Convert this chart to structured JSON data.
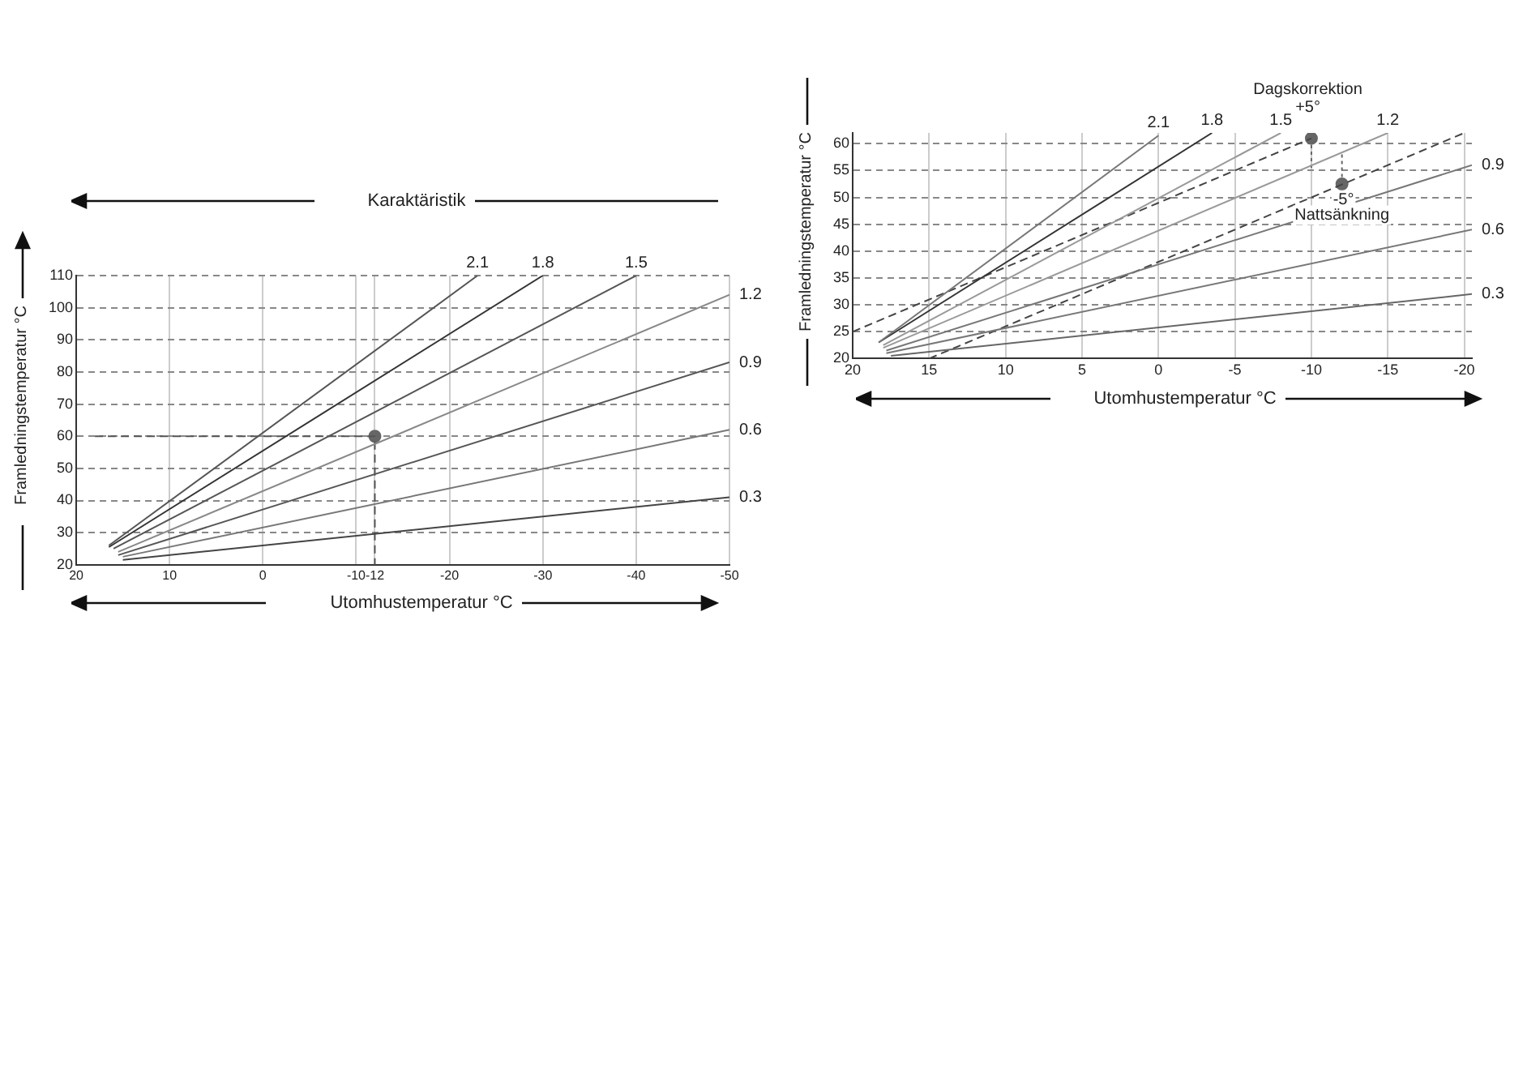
{
  "chart_data": [
    {
      "type": "line",
      "xlabel": "Utomhustemperatur °C",
      "ylabel": "Framledningstemperatur °C",
      "annotations": [
        "Karaktäristik"
      ],
      "xlim": [
        20,
        -50
      ],
      "xticks": [
        20,
        10,
        0,
        -10,
        -12,
        -20,
        -30,
        -40,
        -50
      ],
      "ylim": [
        20,
        110
      ],
      "yticks": [
        20,
        30,
        40,
        50,
        60,
        70,
        80,
        90,
        100,
        110
      ],
      "grid": true,
      "legend": false,
      "marker": "none",
      "series": [
        {
          "name": "2.1",
          "color": "#555555",
          "x": [
            16.5,
            -23
          ],
          "values": [
            26,
            110
          ]
        },
        {
          "name": "1.8",
          "color": "#333333",
          "x": [
            16.5,
            -30
          ],
          "values": [
            25.5,
            110
          ]
        },
        {
          "name": "1.5",
          "color": "#555555",
          "x": [
            16,
            -40
          ],
          "values": [
            25,
            110
          ]
        },
        {
          "name": "1.2",
          "color": "#888888",
          "x": [
            15.5,
            -50
          ],
          "values": [
            24,
            104
          ]
        },
        {
          "name": "0.9",
          "color": "#555555",
          "x": [
            15.5,
            -50
          ],
          "values": [
            23,
            83
          ]
        },
        {
          "name": "0.6",
          "color": "#777777",
          "x": [
            15,
            -50
          ],
          "values": [
            22.5,
            62
          ]
        },
        {
          "name": "0.3",
          "color": "#444444",
          "x": [
            15,
            -50
          ],
          "values": [
            21.5,
            41
          ]
        },
        {
          "color": "#555555",
          "line_style": "dashed",
          "x": [
            18,
            -12,
            -12
          ],
          "values": [
            60,
            60,
            20
          ]
        },
        {
          "type": "scatter",
          "marker": "circle",
          "color": "#666666",
          "x": [
            -12
          ],
          "values": [
            60
          ]
        }
      ]
    },
    {
      "type": "line",
      "xlabel": "Utomhustemperatur °C",
      "ylabel": "Framledningstemperatur °C",
      "annotations": [
        "Dagskorrektion",
        "+5°",
        {
          "text": "-5°",
          "x": -12.1,
          "y": 49.5
        },
        {
          "text": "Nattsänkning",
          "x": -12,
          "y": 46.7
        }
      ],
      "xlim": [
        20,
        -20.5
      ],
      "xticks": [
        20,
        15,
        10,
        5,
        0,
        -5,
        -10,
        -15,
        -20
      ],
      "ylim": [
        20,
        62
      ],
      "yticks": [
        20,
        25,
        30,
        35,
        40,
        45,
        50,
        55,
        60
      ],
      "grid": true,
      "legend": false,
      "marker": "none",
      "series": [
        {
          "name": "2.1",
          "color": "#777777",
          "x": [
            18.3,
            0
          ],
          "values": [
            23,
            61.5
          ]
        },
        {
          "name": "1.8",
          "color": "#333333",
          "x": [
            18.3,
            -3.5
          ],
          "values": [
            23,
            62
          ]
        },
        {
          "name": "1.5",
          "color": "#999999",
          "x": [
            18,
            -8
          ],
          "values": [
            22.5,
            62
          ]
        },
        {
          "name": "1.2",
          "color": "#999999",
          "x": [
            18,
            -15
          ],
          "values": [
            22,
            62
          ]
        },
        {
          "name": "0.9",
          "color": "#777777",
          "x": [
            17.8,
            -20.5
          ],
          "values": [
            21.5,
            56
          ]
        },
        {
          "name": "0.6",
          "color": "#777777",
          "x": [
            17.8,
            -20.5
          ],
          "values": [
            21,
            44
          ]
        },
        {
          "name": "0.3",
          "color": "#666666",
          "x": [
            17.5,
            -20.5
          ],
          "values": [
            20.5,
            32
          ]
        },
        {
          "color": "#444444",
          "line_style": "dashed",
          "x": [
            20,
            -10
          ],
          "values": [
            25,
            61
          ]
        },
        {
          "color": "#444444",
          "line_style": "dashed",
          "x": [
            15,
            -20
          ],
          "values": [
            20,
            62
          ]
        },
        {
          "color": "#666666",
          "line_style": "dotted",
          "x": [
            -10,
            -10
          ],
          "values": [
            55.5,
            60.5
          ]
        },
        {
          "color": "#666666",
          "line_style": "dotted",
          "x": [
            -12,
            -12
          ],
          "values": [
            58,
            53
          ]
        },
        {
          "type": "scatter",
          "marker": "circle",
          "color": "#666666",
          "x": [
            -10,
            -12
          ],
          "values": [
            61,
            52.5
          ]
        }
      ]
    }
  ]
}
